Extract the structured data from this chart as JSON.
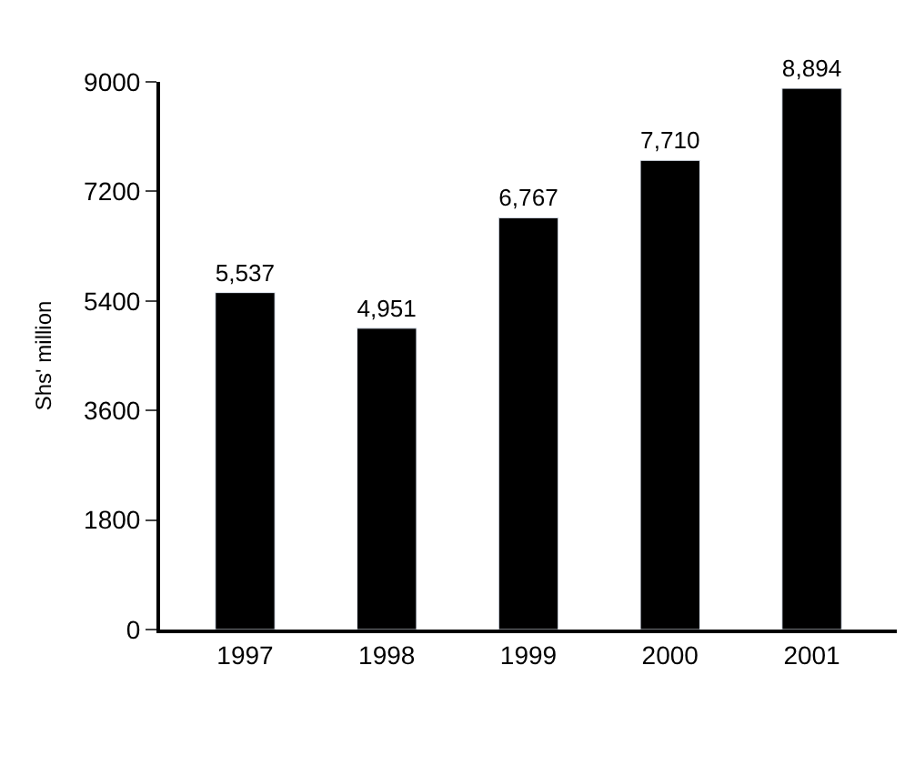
{
  "chart_data": {
    "type": "bar",
    "ylabel": "Shs' million",
    "categories": [
      "1997",
      "1998",
      "1999",
      "2000",
      "2001"
    ],
    "series": [
      {
        "color": "#000000",
        "values": [
          5537,
          4951,
          6767,
          7710,
          8894
        ],
        "value_labels": [
          "5,537",
          "4,951",
          "6,767",
          "7,710",
          "8,894"
        ]
      }
    ],
    "ylim": [
      0,
      9000
    ],
    "yticks": [
      0,
      1800,
      3600,
      5400,
      7200,
      9000
    ]
  }
}
